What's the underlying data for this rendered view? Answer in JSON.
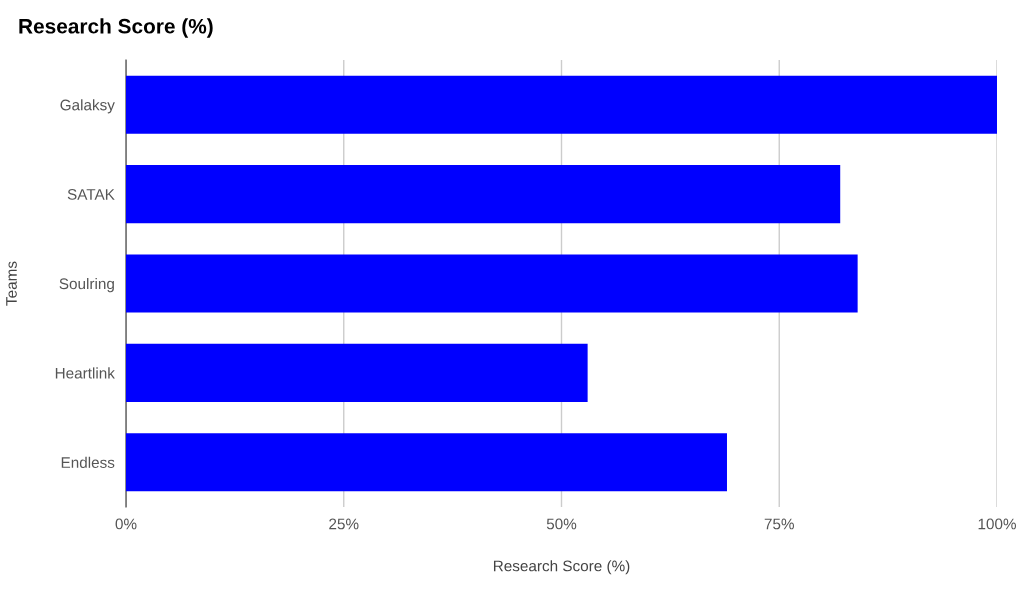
{
  "chart_data": {
    "type": "bar",
    "orientation": "horizontal",
    "title": "Research Score (%)",
    "xlabel": "Research Score (%)",
    "ylabel": "Teams",
    "categories": [
      "Galaksy",
      "SATAK",
      "Soulring",
      "Heartlink",
      "Endless"
    ],
    "values": [
      100,
      82,
      84,
      53,
      69
    ],
    "color": "#0000ff",
    "xlim": [
      0,
      100
    ],
    "xticks": [
      {
        "value": 0,
        "label": "0%"
      },
      {
        "value": 25,
        "label": "25%"
      },
      {
        "value": 50,
        "label": "50%"
      },
      {
        "value": 75,
        "label": "75%"
      },
      {
        "value": 100,
        "label": "100%"
      }
    ],
    "grid": "x",
    "legend": false
  }
}
